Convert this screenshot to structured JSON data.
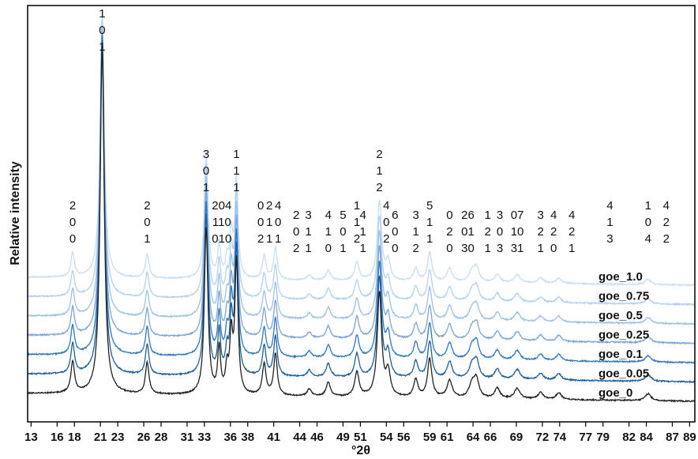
{
  "chart_data": {
    "type": "line",
    "title": "",
    "xlabel": "°2θ",
    "ylabel": "Relative intensity",
    "xlim": [
      12.6,
      89.6
    ],
    "x_ticks": [
      13,
      16,
      18,
      21,
      23,
      26,
      28,
      31,
      33,
      36,
      38,
      41,
      44,
      46,
      49,
      51,
      54,
      56,
      59,
      61,
      64,
      66,
      69,
      72,
      74,
      77,
      79,
      82,
      84,
      87,
      89
    ],
    "y_ticks": "none",
    "grid": false,
    "legend": "none",
    "series_order_bottom_to_top": [
      "goe_0",
      "goe_0.05",
      "goe_0.1",
      "goe_0.25",
      "goe_0.5",
      "goe_0.75",
      "goe_1.0"
    ],
    "series": [
      {
        "name": "goe_0",
        "color": "#222222",
        "baseline_offset": 0
      },
      {
        "name": "goe_0.05",
        "color": "#1f5f99",
        "baseline_offset": 1
      },
      {
        "name": "goe_0.1",
        "color": "#2e78bf",
        "baseline_offset": 2
      },
      {
        "name": "goe_0.25",
        "color": "#7ea4d6",
        "baseline_offset": 3
      },
      {
        "name": "goe_0.5",
        "color": "#9cc1e6",
        "baseline_offset": 4
      },
      {
        "name": "goe_0.75",
        "color": "#b3d1ee",
        "baseline_offset": 5
      },
      {
        "name": "goe_1.0",
        "color": "#c7def4",
        "baseline_offset": 6
      }
    ],
    "peaks": [
      {
        "x": 17.8,
        "rel_intensity": 0.09,
        "width": 0.25
      },
      {
        "x": 21.2,
        "rel_intensity": 1.0,
        "width": 0.28
      },
      {
        "x": 26.4,
        "rel_intensity": 0.09,
        "width": 0.25
      },
      {
        "x": 33.2,
        "rel_intensity": 0.48,
        "width": 0.25
      },
      {
        "x": 34.7,
        "rel_intensity": 0.13,
        "width": 0.2
      },
      {
        "x": 35.6,
        "rel_intensity": 0.07,
        "width": 0.2
      },
      {
        "x": 36.1,
        "rel_intensity": 0.16,
        "width": 0.2
      },
      {
        "x": 36.7,
        "rel_intensity": 0.38,
        "width": 0.22
      },
      {
        "x": 39.9,
        "rel_intensity": 0.09,
        "width": 0.25
      },
      {
        "x": 41.2,
        "rel_intensity": 0.12,
        "width": 0.25
      },
      {
        "x": 45.1,
        "rel_intensity": 0.02,
        "width": 0.3
      },
      {
        "x": 47.3,
        "rel_intensity": 0.04,
        "width": 0.3
      },
      {
        "x": 50.6,
        "rel_intensity": 0.07,
        "width": 0.3
      },
      {
        "x": 53.2,
        "rel_intensity": 0.3,
        "width": 0.3
      },
      {
        "x": 54.2,
        "rel_intensity": 0.07,
        "width": 0.3
      },
      {
        "x": 57.4,
        "rel_intensity": 0.05,
        "width": 0.3
      },
      {
        "x": 59.0,
        "rel_intensity": 0.11,
        "width": 0.3
      },
      {
        "x": 61.3,
        "rel_intensity": 0.05,
        "width": 0.35
      },
      {
        "x": 63.9,
        "rel_intensity": 0.04,
        "width": 0.4
      },
      {
        "x": 64.4,
        "rel_intensity": 0.05,
        "width": 0.35
      },
      {
        "x": 66.8,
        "rel_intensity": 0.03,
        "width": 0.35
      },
      {
        "x": 69.1,
        "rel_intensity": 0.03,
        "width": 0.4
      },
      {
        "x": 71.8,
        "rel_intensity": 0.02,
        "width": 0.35
      },
      {
        "x": 73.9,
        "rel_intensity": 0.02,
        "width": 0.35
      },
      {
        "x": 84.2,
        "rel_intensity": 0.02,
        "width": 0.4
      }
    ],
    "peak_labels": [
      {
        "x": 17.8,
        "level": "top",
        "lines": [
          "2",
          "0",
          "0"
        ]
      },
      {
        "x": 21.2,
        "level": "main",
        "lines": [
          "1",
          "0",
          "1"
        ]
      },
      {
        "x": 26.4,
        "level": "top",
        "lines": [
          "2",
          "0",
          "1"
        ]
      },
      {
        "x": 33.2,
        "level": "mid",
        "lines": [
          "3",
          "0",
          "1"
        ]
      },
      {
        "x": 35.0,
        "level": "top",
        "lines": [
          "204",
          "110",
          "010"
        ]
      },
      {
        "x": 36.7,
        "level": "mid",
        "lines": [
          "1",
          "1",
          "1"
        ]
      },
      {
        "x": 39.5,
        "level": "top",
        "lines": [
          "0",
          "0",
          "2"
        ]
      },
      {
        "x": 40.5,
        "level": "top",
        "lines": [
          "2",
          "1",
          "1"
        ]
      },
      {
        "x": 41.5,
        "level": "top",
        "lines": [
          "4",
          "0",
          "1"
        ]
      },
      {
        "x": 43.6,
        "level": "low",
        "lines": [
          "2",
          "0",
          "2"
        ]
      },
      {
        "x": 45.0,
        "level": "low",
        "lines": [
          "3",
          "1",
          "1"
        ]
      },
      {
        "x": 47.3,
        "level": "low",
        "lines": [
          "4",
          "1",
          "0"
        ]
      },
      {
        "x": 49.0,
        "level": "low",
        "lines": [
          "5",
          "0",
          "1"
        ]
      },
      {
        "x": 50.6,
        "level": "top",
        "lines": [
          "1",
          "1",
          "2"
        ]
      },
      {
        "x": 51.3,
        "level": "low",
        "lines": [
          "4",
          "1",
          "1"
        ]
      },
      {
        "x": 53.2,
        "level": "mid",
        "lines": [
          "2",
          "1",
          "2"
        ]
      },
      {
        "x": 54.0,
        "level": "top",
        "lines": [
          "4",
          "0",
          "2"
        ]
      },
      {
        "x": 55.0,
        "level": "low",
        "lines": [
          "6",
          "0",
          "0"
        ]
      },
      {
        "x": 57.4,
        "level": "low",
        "lines": [
          "3",
          "1",
          "2"
        ]
      },
      {
        "x": 59.0,
        "level": "top",
        "lines": [
          "5",
          "1",
          "1"
        ]
      },
      {
        "x": 61.3,
        "level": "low",
        "lines": [
          "0",
          "2",
          "0"
        ]
      },
      {
        "x": 63.4,
        "level": "low",
        "lines": [
          "26",
          "01",
          "30"
        ]
      },
      {
        "x": 65.7,
        "level": "low",
        "lines": [
          "1",
          "2",
          "1"
        ]
      },
      {
        "x": 67.1,
        "level": "low",
        "lines": [
          "3",
          "0",
          "3"
        ]
      },
      {
        "x": 69.1,
        "level": "low",
        "lines": [
          "07",
          "10",
          "31"
        ]
      },
      {
        "x": 71.8,
        "level": "low",
        "lines": [
          "3",
          "2",
          "1"
        ]
      },
      {
        "x": 73.3,
        "level": "low",
        "lines": [
          "4",
          "2",
          "0"
        ]
      },
      {
        "x": 75.4,
        "level": "low",
        "lines": [
          "4",
          "2",
          "1"
        ]
      },
      {
        "x": 79.8,
        "level": "top",
        "lines": [
          "4",
          "1",
          "3"
        ]
      },
      {
        "x": 84.2,
        "level": "top",
        "lines": [
          "1",
          "0",
          "4"
        ]
      },
      {
        "x": 86.3,
        "level": "top",
        "lines": [
          "4",
          "2",
          "2"
        ]
      }
    ]
  }
}
